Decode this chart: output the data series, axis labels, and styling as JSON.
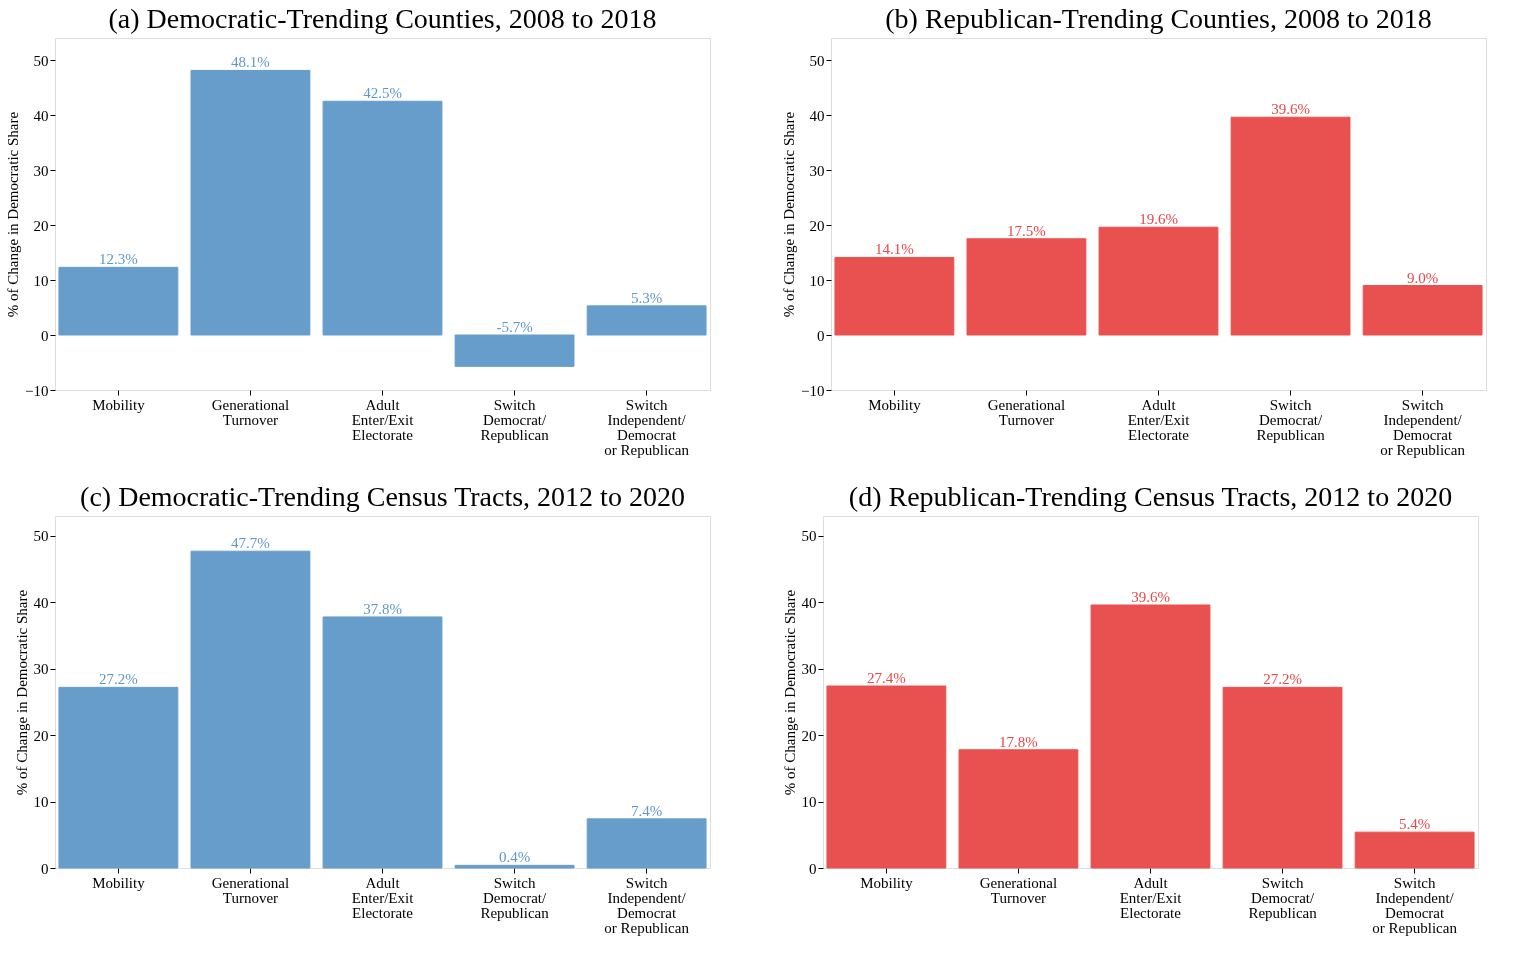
{
  "chart_data": [
    {
      "type": "bar",
      "title": "(a) Democratic-Trending Counties, 2008 to 2018",
      "ylabel": "% of Change in Democratic Share",
      "categories": [
        "Mobility",
        "Generational\nTurnover",
        "Adult\nEnter/Exit\nElectorate",
        "Switch\nDemocrat/\nRepublican",
        "Switch\nIndependent/\nDemocrat\nor Republican"
      ],
      "values": [
        12.3,
        48.1,
        42.5,
        -5.7,
        5.3
      ],
      "value_labels": [
        "12.3%",
        "48.1%",
        "42.5%",
        "-5.7%",
        "5.3%"
      ],
      "color": "#5f98c8",
      "ylim": [
        -10,
        54
      ],
      "yticks": [
        -10,
        0,
        10,
        20,
        30,
        40,
        50
      ],
      "grid": false
    },
    {
      "type": "bar",
      "title": "(b) Republican-Trending Counties, 2008 to 2018",
      "ylabel": "% of Change in Democratic Share",
      "categories": [
        "Mobility",
        "Generational\nTurnover",
        "Adult\nEnter/Exit\nElectorate",
        "Switch\nDemocrat/\nRepublican",
        "Switch\nIndependent/\nDemocrat\nor Republican"
      ],
      "values": [
        14.1,
        17.5,
        19.6,
        39.6,
        9.0
      ],
      "value_labels": [
        "14.1%",
        "17.5%",
        "19.6%",
        "39.6%",
        "9.0%"
      ],
      "color": "#e84848",
      "ylim": [
        -10,
        54
      ],
      "yticks": [
        -10,
        0,
        10,
        20,
        30,
        40,
        50
      ],
      "grid": false
    },
    {
      "type": "bar",
      "title": "(c) Democratic-Trending Census Tracts, 2012 to 2020",
      "ylabel": "% of Change in Democratic Share",
      "categories": [
        "Mobility",
        "Generational\nTurnover",
        "Adult\nEnter/Exit\nElectorate",
        "Switch\nDemocrat/\nRepublican",
        "Switch\nIndependent/\nDemocrat\nor Republican"
      ],
      "values": [
        27.2,
        47.7,
        37.8,
        0.4,
        7.4
      ],
      "value_labels": [
        "27.2%",
        "47.7%",
        "37.8%",
        "0.4%",
        "7.4%"
      ],
      "color": "#5f98c8",
      "ylim": [
        0,
        53
      ],
      "yticks": [
        0,
        10,
        20,
        30,
        40,
        50
      ],
      "grid": false
    },
    {
      "type": "bar",
      "title": "(d) Republican-Trending Census Tracts, 2012 to 2020",
      "ylabel": "% of Change in Democratic Share",
      "categories": [
        "Mobility",
        "Generational\nTurnover",
        "Adult\nEnter/Exit\nElectorate",
        "Switch\nDemocrat/\nRepublican",
        "Switch\nIndependent/\nDemocrat\nor Republican"
      ],
      "values": [
        27.4,
        17.8,
        39.6,
        27.2,
        5.4
      ],
      "value_labels": [
        "27.4%",
        "17.8%",
        "39.6%",
        "27.2%",
        "5.4%"
      ],
      "color": "#e84848",
      "ylim": [
        0,
        53
      ],
      "yticks": [
        0,
        10,
        20,
        30,
        40,
        50
      ],
      "grid": false
    }
  ]
}
